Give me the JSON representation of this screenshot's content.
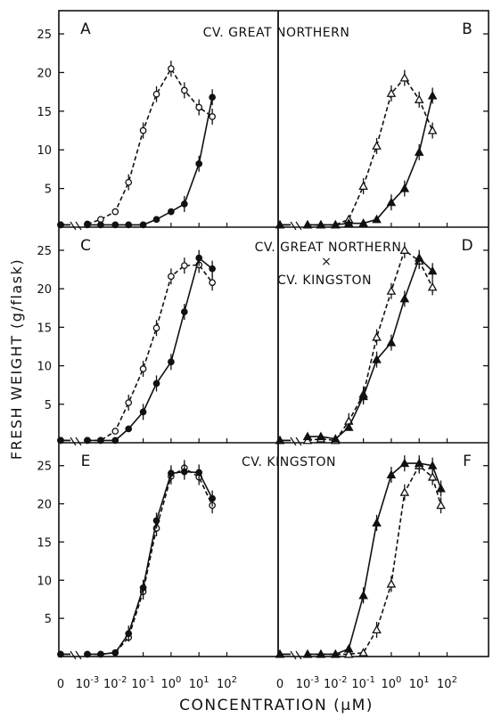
{
  "chart_data": {
    "type": "line",
    "ylabel": "FRESH WEIGHT (g/flask)",
    "xlabel": "CONCENTRATION (μM)",
    "x_tick_labels": [
      "0",
      "10-3",
      "10-2",
      "10-1",
      "100",
      "101",
      "102"
    ],
    "y_ticks": [
      5,
      10,
      15,
      20,
      25
    ],
    "x_tick_values": [
      0,
      0.001,
      0.01,
      0.1,
      1,
      10,
      100
    ],
    "panel_titles": {
      "top": "CV. GREAT NORTHERN",
      "middle_line1": "CV. GREAT NORTHERN",
      "middle_cross": "×",
      "middle_line2": "CV. KINGSTON",
      "bottom": "CV. KINGSTON"
    },
    "panels": [
      {
        "letter": "A",
        "row": 0,
        "col": 0,
        "series": [
          {
            "marker": "circle-open",
            "dashed": true,
            "points": [
              [
                0,
                0.3
              ],
              [
                0.001,
                0.4
              ],
              [
                0.003,
                1.0
              ],
              [
                0.01,
                2.0
              ],
              [
                0.03,
                5.8
              ],
              [
                0.1,
                12.5
              ],
              [
                0.3,
                17.2
              ],
              [
                1,
                20.5
              ],
              [
                3,
                17.7
              ],
              [
                10,
                15.5
              ],
              [
                30,
                14.3
              ]
            ]
          },
          {
            "marker": "circle-filled",
            "dashed": false,
            "points": [
              [
                0,
                0.3
              ],
              [
                0.001,
                0.3
              ],
              [
                0.003,
                0.3
              ],
              [
                0.01,
                0.3
              ],
              [
                0.03,
                0.3
              ],
              [
                0.1,
                0.3
              ],
              [
                0.3,
                1.0
              ],
              [
                1,
                2.0
              ],
              [
                3,
                3.0
              ],
              [
                10,
                8.2
              ],
              [
                30,
                16.8
              ]
            ]
          }
        ]
      },
      {
        "letter": "B",
        "row": 0,
        "col": 1,
        "series": [
          {
            "marker": "triangle-open",
            "dashed": true,
            "points": [
              [
                0,
                0.3
              ],
              [
                0.001,
                0.3
              ],
              [
                0.003,
                0.3
              ],
              [
                0.01,
                0.3
              ],
              [
                0.03,
                1.0
              ],
              [
                0.1,
                5.3
              ],
              [
                0.3,
                10.5
              ],
              [
                1,
                17.3
              ],
              [
                3,
                19.3
              ],
              [
                10,
                16.5
              ],
              [
                30,
                12.5
              ]
            ]
          },
          {
            "marker": "triangle-filled",
            "dashed": false,
            "points": [
              [
                0,
                0.3
              ],
              [
                0.001,
                0.3
              ],
              [
                0.003,
                0.3
              ],
              [
                0.01,
                0.3
              ],
              [
                0.03,
                0.5
              ],
              [
                0.1,
                0.5
              ],
              [
                0.3,
                1.0
              ],
              [
                1,
                3.2
              ],
              [
                3,
                5.0
              ],
              [
                10,
                9.7
              ],
              [
                30,
                17.0
              ]
            ]
          }
        ]
      },
      {
        "letter": "C",
        "row": 1,
        "col": 0,
        "series": [
          {
            "marker": "circle-open",
            "dashed": true,
            "points": [
              [
                0,
                0.3
              ],
              [
                0.001,
                0.3
              ],
              [
                0.003,
                0.3
              ],
              [
                0.01,
                1.5
              ],
              [
                0.03,
                5.2
              ],
              [
                0.1,
                9.6
              ],
              [
                0.3,
                14.9
              ],
              [
                1,
                21.6
              ],
              [
                3,
                23.0
              ],
              [
                10,
                23.1
              ],
              [
                30,
                20.8
              ]
            ]
          },
          {
            "marker": "circle-filled",
            "dashed": false,
            "points": [
              [
                0,
                0.3
              ],
              [
                0.001,
                0.3
              ],
              [
                0.003,
                0.3
              ],
              [
                0.01,
                0.3
              ],
              [
                0.03,
                1.8
              ],
              [
                0.1,
                4.0
              ],
              [
                0.3,
                7.7
              ],
              [
                1,
                10.5
              ],
              [
                3,
                17.0
              ],
              [
                10,
                24.0
              ],
              [
                30,
                22.6
              ]
            ]
          }
        ]
      },
      {
        "letter": "D",
        "row": 1,
        "col": 1,
        "series": [
          {
            "marker": "triangle-open",
            "dashed": true,
            "points": [
              [
                0,
                0.3
              ],
              [
                0.001,
                0.3
              ],
              [
                0.003,
                0.5
              ],
              [
                0.01,
                0.3
              ],
              [
                0.03,
                2.8
              ],
              [
                0.1,
                6.3
              ],
              [
                0.3,
                13.7
              ],
              [
                1,
                19.7
              ],
              [
                3,
                25.0
              ],
              [
                10,
                23.6
              ],
              [
                30,
                20.2
              ]
            ]
          },
          {
            "marker": "triangle-filled",
            "dashed": false,
            "points": [
              [
                0,
                0.3
              ],
              [
                0.001,
                0.8
              ],
              [
                0.003,
                0.8
              ],
              [
                0.01,
                0.5
              ],
              [
                0.03,
                2.0
              ],
              [
                0.1,
                6.0
              ],
              [
                0.3,
                10.8
              ],
              [
                1,
                13.0
              ],
              [
                3,
                18.7
              ],
              [
                10,
                24.0
              ],
              [
                30,
                22.3
              ]
            ]
          }
        ]
      },
      {
        "letter": "E",
        "row": 2,
        "col": 0,
        "series": [
          {
            "marker": "circle-open",
            "dashed": true,
            "points": [
              [
                0,
                0.3
              ],
              [
                0.001,
                0.3
              ],
              [
                0.003,
                0.3
              ],
              [
                0.01,
                0.5
              ],
              [
                0.03,
                2.5
              ],
              [
                0.1,
                8.5
              ],
              [
                0.3,
                16.8
              ],
              [
                1,
                23.6
              ],
              [
                3,
                24.7
              ],
              [
                10,
                23.5
              ],
              [
                30,
                19.8
              ]
            ]
          },
          {
            "marker": "circle-filled",
            "dashed": false,
            "points": [
              [
                0,
                0.3
              ],
              [
                0.001,
                0.3
              ],
              [
                0.003,
                0.3
              ],
              [
                0.01,
                0.5
              ],
              [
                0.03,
                3.0
              ],
              [
                0.1,
                9.0
              ],
              [
                0.3,
                17.8
              ],
              [
                1,
                24.0
              ],
              [
                3,
                24.2
              ],
              [
                10,
                24.1
              ],
              [
                30,
                20.7
              ]
            ]
          }
        ]
      },
      {
        "letter": "F",
        "row": 2,
        "col": 1,
        "series": [
          {
            "marker": "triangle-open",
            "dashed": true,
            "points": [
              [
                0,
                0.3
              ],
              [
                0.001,
                0.3
              ],
              [
                0.003,
                0.3
              ],
              [
                0.01,
                0.3
              ],
              [
                0.03,
                0.3
              ],
              [
                0.1,
                0.5
              ],
              [
                0.3,
                3.5
              ],
              [
                1,
                9.5
              ],
              [
                3,
                21.5
              ],
              [
                10,
                25.0
              ],
              [
                30,
                23.5
              ],
              [
                60,
                19.8
              ]
            ]
          },
          {
            "marker": "triangle-filled",
            "dashed": false,
            "points": [
              [
                0,
                0.3
              ],
              [
                0.001,
                0.3
              ],
              [
                0.003,
                0.3
              ],
              [
                0.01,
                0.3
              ],
              [
                0.03,
                1.0
              ],
              [
                0.1,
                8.0
              ],
              [
                0.3,
                17.5
              ],
              [
                1,
                23.8
              ],
              [
                3,
                25.3
              ],
              [
                10,
                25.3
              ],
              [
                30,
                25.0
              ],
              [
                60,
                22.0
              ]
            ]
          }
        ]
      }
    ]
  }
}
